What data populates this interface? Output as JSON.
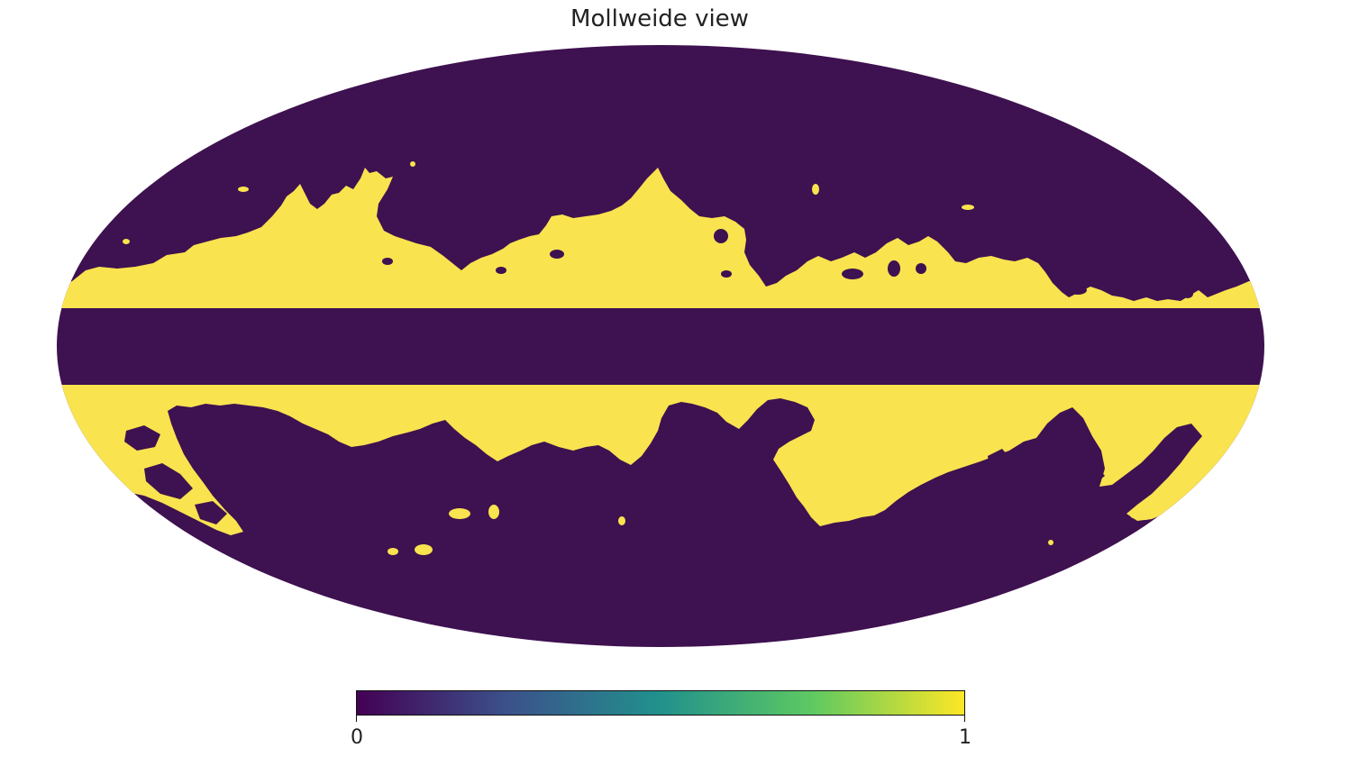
{
  "map": {
    "title": "Mollweide view",
    "projection": "mollweide",
    "colormap": "viridis",
    "colors": {
      "masked": "#3e1150",
      "unmasked": "#f9e34f",
      "background": "#ffffff"
    }
  },
  "colorbar": {
    "min_label": "0",
    "max_label": "1",
    "stops": [
      "#440154",
      "#3b528b",
      "#21918c",
      "#5ec962",
      "#fde725"
    ]
  }
}
